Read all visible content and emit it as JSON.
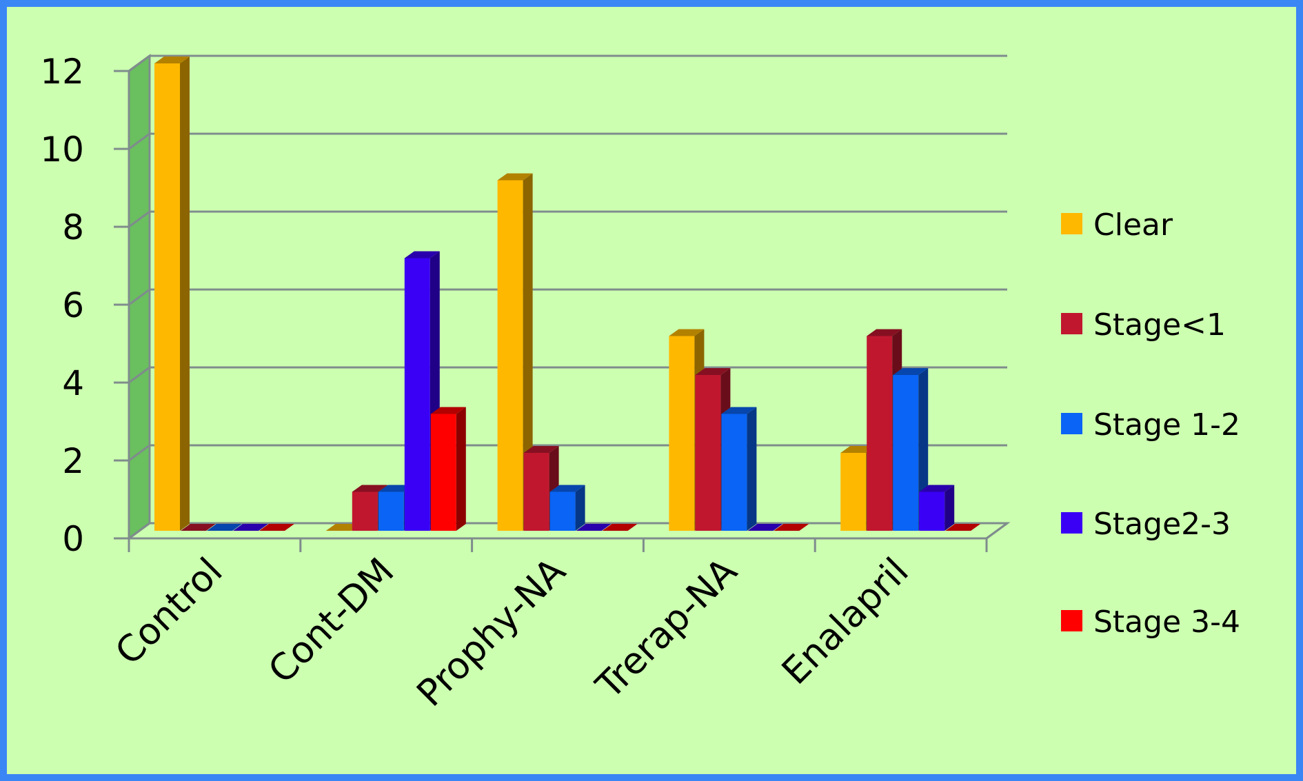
{
  "chart_data": {
    "type": "bar",
    "style": "3d-clustered-column",
    "title": "",
    "xlabel": "",
    "ylabel": "",
    "categories": [
      "Control",
      "Cont-DM",
      "Prophy-NA",
      "Trerap-NA",
      "Enalapril"
    ],
    "series": [
      {
        "name": "Clear",
        "color": "#FFB800",
        "values": [
          12,
          0,
          9,
          5,
          2
        ]
      },
      {
        "name": "Stage<1",
        "color": "#C0172F",
        "values": [
          0,
          1,
          2,
          4,
          5
        ]
      },
      {
        "name": "Stage 1-2",
        "color": "#0A64F5",
        "values": [
          0,
          1,
          1,
          3,
          4
        ]
      },
      {
        "name": "Stage2-3",
        "color": "#3A00F5",
        "values": [
          0,
          7,
          0,
          0,
          1
        ]
      },
      {
        "name": "Stage 3-4",
        "color": "#FF0000",
        "values": [
          0,
          3,
          0,
          0,
          0
        ]
      }
    ],
    "yticks": [
      "0",
      "2",
      "4",
      "6",
      "8",
      "10",
      "12"
    ],
    "ylim": [
      0,
      12
    ],
    "grid": true,
    "legend": "right",
    "colors": {
      "background": "#CCFFB0",
      "border": "#3B86F5",
      "side_wall": "#6ABF5E",
      "grid": "#7F8C8D"
    }
  }
}
